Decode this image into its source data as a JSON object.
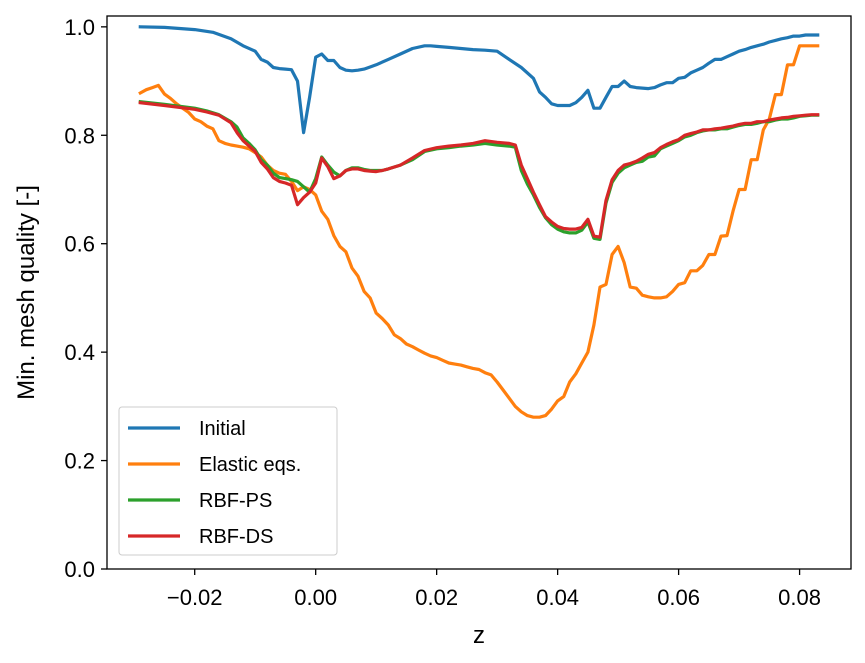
{
  "chart_data": {
    "type": "line",
    "xlabel": "z",
    "ylabel": "Min. mesh quality [-]",
    "xlim": [
      -0.0345,
      0.0885
    ],
    "ylim": [
      0.0,
      1.02
    ],
    "xticks": [
      -0.02,
      0.0,
      0.02,
      0.04,
      0.06,
      0.08
    ],
    "xtick_labels": [
      "−0.02",
      "0.00",
      "0.02",
      "0.04",
      "0.06",
      "0.08"
    ],
    "yticks": [
      0.0,
      0.2,
      0.4,
      0.6,
      0.8,
      1.0
    ],
    "ytick_labels": [
      "0.0",
      "0.2",
      "0.4",
      "0.6",
      "0.8",
      "1.0"
    ],
    "grid": false,
    "legend_position": "bottom-left",
    "series": [
      {
        "name": "Initial",
        "color": "#1f77b4",
        "x": [
          -0.029,
          -0.025,
          -0.02,
          -0.017,
          -0.014,
          -0.012,
          -0.01,
          -0.009,
          -0.008,
          -0.007,
          -0.006,
          -0.005,
          -0.004,
          -0.003,
          -0.002,
          -0.001,
          0.0,
          0.001,
          0.002,
          0.003,
          0.004,
          0.005,
          0.006,
          0.007,
          0.008,
          0.009,
          0.01,
          0.012,
          0.014,
          0.016,
          0.018,
          0.019,
          0.02,
          0.022,
          0.024,
          0.026,
          0.028,
          0.03,
          0.032,
          0.034,
          0.036,
          0.037,
          0.038,
          0.039,
          0.04,
          0.041,
          0.042,
          0.043,
          0.044,
          0.045,
          0.046,
          0.047,
          0.048,
          0.049,
          0.05,
          0.051,
          0.052,
          0.053,
          0.054,
          0.055,
          0.056,
          0.057,
          0.058,
          0.059,
          0.06,
          0.061,
          0.062,
          0.063,
          0.064,
          0.065,
          0.066,
          0.067,
          0.068,
          0.069,
          0.07,
          0.071,
          0.072,
          0.073,
          0.074,
          0.075,
          0.076,
          0.077,
          0.078,
          0.079,
          0.08,
          0.081,
          0.082,
          0.083
        ],
        "y": [
          1.0,
          0.999,
          0.995,
          0.99,
          0.978,
          0.965,
          0.955,
          0.94,
          0.935,
          0.925,
          0.923,
          0.922,
          0.921,
          0.9,
          0.805,
          0.87,
          0.944,
          0.95,
          0.938,
          0.938,
          0.925,
          0.92,
          0.919,
          0.92,
          0.922,
          0.926,
          0.93,
          0.94,
          0.95,
          0.96,
          0.965,
          0.965,
          0.964,
          0.962,
          0.96,
          0.958,
          0.957,
          0.955,
          0.94,
          0.925,
          0.905,
          0.88,
          0.87,
          0.858,
          0.855,
          0.855,
          0.855,
          0.86,
          0.87,
          0.883,
          0.85,
          0.85,
          0.87,
          0.89,
          0.89,
          0.9,
          0.89,
          0.888,
          0.887,
          0.886,
          0.888,
          0.893,
          0.897,
          0.897,
          0.905,
          0.907,
          0.915,
          0.92,
          0.925,
          0.933,
          0.94,
          0.94,
          0.945,
          0.95,
          0.955,
          0.958,
          0.962,
          0.965,
          0.968,
          0.972,
          0.975,
          0.978,
          0.98,
          0.983,
          0.983,
          0.985,
          0.985,
          0.985
        ]
      },
      {
        "name": "Elastic eqs.",
        "color": "#ff7f0e",
        "x": [
          -0.029,
          -0.028,
          -0.027,
          -0.026,
          -0.025,
          -0.024,
          -0.023,
          -0.022,
          -0.021,
          -0.02,
          -0.019,
          -0.018,
          -0.017,
          -0.016,
          -0.015,
          -0.014,
          -0.013,
          -0.012,
          -0.011,
          -0.01,
          -0.009,
          -0.008,
          -0.007,
          -0.006,
          -0.005,
          -0.004,
          -0.003,
          -0.002,
          -0.001,
          0.0,
          0.001,
          0.002,
          0.003,
          0.004,
          0.005,
          0.006,
          0.007,
          0.008,
          0.009,
          0.01,
          0.011,
          0.012,
          0.013,
          0.014,
          0.015,
          0.016,
          0.017,
          0.018,
          0.019,
          0.02,
          0.021,
          0.022,
          0.023,
          0.024,
          0.025,
          0.026,
          0.027,
          0.028,
          0.029,
          0.03,
          0.031,
          0.032,
          0.033,
          0.034,
          0.035,
          0.036,
          0.037,
          0.038,
          0.039,
          0.04,
          0.041,
          0.042,
          0.043,
          0.044,
          0.045,
          0.046,
          0.047,
          0.048,
          0.049,
          0.05,
          0.051,
          0.052,
          0.053,
          0.054,
          0.055,
          0.056,
          0.057,
          0.058,
          0.059,
          0.06,
          0.061,
          0.062,
          0.063,
          0.064,
          0.065,
          0.066,
          0.067,
          0.068,
          0.069,
          0.07,
          0.071,
          0.072,
          0.073,
          0.074,
          0.075,
          0.076,
          0.077,
          0.078,
          0.079,
          0.08,
          0.081,
          0.082,
          0.083
        ],
        "y": [
          0.878,
          0.884,
          0.888,
          0.892,
          0.876,
          0.868,
          0.858,
          0.85,
          0.842,
          0.83,
          0.825,
          0.817,
          0.812,
          0.79,
          0.785,
          0.782,
          0.78,
          0.778,
          0.775,
          0.768,
          0.76,
          0.745,
          0.735,
          0.73,
          0.728,
          0.715,
          0.698,
          0.705,
          0.7,
          0.69,
          0.66,
          0.645,
          0.615,
          0.595,
          0.585,
          0.555,
          0.54,
          0.512,
          0.5,
          0.472,
          0.462,
          0.45,
          0.432,
          0.425,
          0.415,
          0.41,
          0.404,
          0.398,
          0.393,
          0.39,
          0.385,
          0.38,
          0.378,
          0.376,
          0.373,
          0.37,
          0.368,
          0.362,
          0.358,
          0.345,
          0.33,
          0.315,
          0.3,
          0.29,
          0.283,
          0.28,
          0.28,
          0.283,
          0.295,
          0.31,
          0.318,
          0.345,
          0.36,
          0.38,
          0.4,
          0.45,
          0.52,
          0.525,
          0.58,
          0.595,
          0.565,
          0.52,
          0.518,
          0.505,
          0.502,
          0.5,
          0.5,
          0.502,
          0.512,
          0.525,
          0.528,
          0.55,
          0.55,
          0.56,
          0.58,
          0.58,
          0.614,
          0.615,
          0.66,
          0.7,
          0.7,
          0.755,
          0.755,
          0.81,
          0.83,
          0.875,
          0.875,
          0.93,
          0.93,
          0.965,
          0.965,
          0.965,
          0.965
        ]
      },
      {
        "name": "RBF-PS",
        "color": "#2ca02c",
        "x": [
          -0.029,
          -0.025,
          -0.02,
          -0.018,
          -0.016,
          -0.014,
          -0.013,
          -0.012,
          -0.011,
          -0.01,
          -0.009,
          -0.008,
          -0.007,
          -0.006,
          -0.005,
          -0.004,
          -0.003,
          -0.002,
          -0.001,
          0.0,
          0.001,
          0.002,
          0.003,
          0.004,
          0.005,
          0.006,
          0.007,
          0.008,
          0.009,
          0.01,
          0.011,
          0.012,
          0.014,
          0.016,
          0.018,
          0.02,
          0.022,
          0.024,
          0.026,
          0.028,
          0.03,
          0.032,
          0.033,
          0.034,
          0.035,
          0.036,
          0.037,
          0.038,
          0.039,
          0.04,
          0.041,
          0.042,
          0.043,
          0.044,
          0.045,
          0.046,
          0.047,
          0.048,
          0.049,
          0.05,
          0.051,
          0.052,
          0.053,
          0.054,
          0.055,
          0.056,
          0.057,
          0.058,
          0.059,
          0.06,
          0.061,
          0.062,
          0.063,
          0.064,
          0.065,
          0.066,
          0.067,
          0.068,
          0.069,
          0.07,
          0.071,
          0.072,
          0.073,
          0.074,
          0.075,
          0.076,
          0.077,
          0.078,
          0.079,
          0.08,
          0.081,
          0.082,
          0.083
        ],
        "y": [
          0.862,
          0.857,
          0.85,
          0.845,
          0.838,
          0.825,
          0.815,
          0.795,
          0.785,
          0.773,
          0.755,
          0.745,
          0.73,
          0.722,
          0.72,
          0.718,
          0.715,
          0.705,
          0.695,
          0.72,
          0.76,
          0.745,
          0.732,
          0.725,
          0.735,
          0.74,
          0.74,
          0.737,
          0.735,
          0.735,
          0.735,
          0.738,
          0.745,
          0.755,
          0.77,
          0.775,
          0.777,
          0.78,
          0.782,
          0.785,
          0.782,
          0.78,
          0.778,
          0.735,
          0.71,
          0.69,
          0.667,
          0.648,
          0.635,
          0.627,
          0.622,
          0.62,
          0.62,
          0.625,
          0.64,
          0.61,
          0.608,
          0.675,
          0.713,
          0.73,
          0.74,
          0.745,
          0.75,
          0.752,
          0.76,
          0.762,
          0.775,
          0.78,
          0.785,
          0.79,
          0.797,
          0.8,
          0.805,
          0.808,
          0.81,
          0.81,
          0.812,
          0.812,
          0.815,
          0.818,
          0.82,
          0.82,
          0.822,
          0.825,
          0.825,
          0.828,
          0.83,
          0.83,
          0.832,
          0.835,
          0.836,
          0.837,
          0.837
        ]
      },
      {
        "name": "RBF-DS",
        "color": "#d62728",
        "x": [
          -0.029,
          -0.025,
          -0.02,
          -0.018,
          -0.016,
          -0.014,
          -0.013,
          -0.012,
          -0.011,
          -0.01,
          -0.009,
          -0.008,
          -0.007,
          -0.006,
          -0.005,
          -0.004,
          -0.003,
          -0.002,
          -0.001,
          0.0,
          0.001,
          0.002,
          0.003,
          0.004,
          0.005,
          0.006,
          0.007,
          0.008,
          0.009,
          0.01,
          0.011,
          0.012,
          0.014,
          0.016,
          0.018,
          0.02,
          0.022,
          0.024,
          0.026,
          0.028,
          0.03,
          0.032,
          0.033,
          0.034,
          0.035,
          0.036,
          0.037,
          0.038,
          0.039,
          0.04,
          0.041,
          0.042,
          0.043,
          0.044,
          0.045,
          0.046,
          0.047,
          0.048,
          0.049,
          0.05,
          0.051,
          0.052,
          0.053,
          0.054,
          0.055,
          0.056,
          0.057,
          0.058,
          0.059,
          0.06,
          0.061,
          0.062,
          0.063,
          0.064,
          0.065,
          0.066,
          0.067,
          0.068,
          0.069,
          0.07,
          0.071,
          0.072,
          0.073,
          0.074,
          0.075,
          0.076,
          0.077,
          0.078,
          0.079,
          0.08,
          0.081,
          0.082,
          0.083
        ],
        "y": [
          0.86,
          0.855,
          0.848,
          0.843,
          0.837,
          0.823,
          0.805,
          0.79,
          0.78,
          0.77,
          0.75,
          0.738,
          0.722,
          0.715,
          0.712,
          0.708,
          0.672,
          0.685,
          0.695,
          0.712,
          0.758,
          0.742,
          0.72,
          0.725,
          0.735,
          0.738,
          0.738,
          0.735,
          0.734,
          0.733,
          0.735,
          0.738,
          0.745,
          0.758,
          0.772,
          0.777,
          0.78,
          0.782,
          0.785,
          0.79,
          0.787,
          0.785,
          0.782,
          0.745,
          0.72,
          0.695,
          0.672,
          0.65,
          0.64,
          0.632,
          0.628,
          0.627,
          0.627,
          0.63,
          0.645,
          0.614,
          0.612,
          0.68,
          0.718,
          0.735,
          0.745,
          0.748,
          0.752,
          0.758,
          0.765,
          0.768,
          0.777,
          0.783,
          0.788,
          0.792,
          0.8,
          0.803,
          0.806,
          0.81,
          0.81,
          0.812,
          0.813,
          0.815,
          0.817,
          0.82,
          0.822,
          0.822,
          0.825,
          0.825,
          0.828,
          0.83,
          0.832,
          0.833,
          0.835,
          0.836,
          0.837,
          0.838,
          0.838
        ]
      }
    ]
  }
}
